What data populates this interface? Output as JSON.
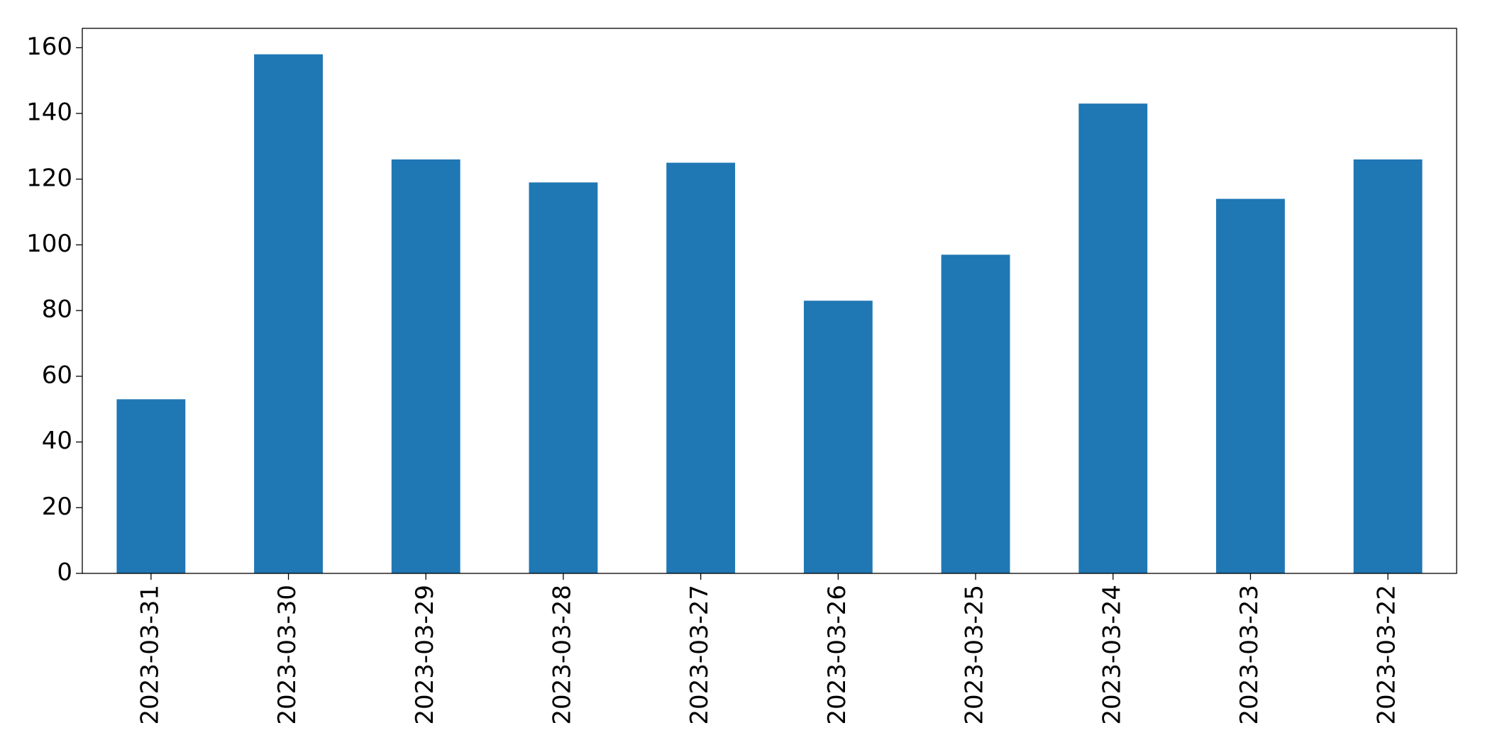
{
  "chart_data": {
    "type": "bar",
    "categories": [
      "2023-03-31",
      "2023-03-30",
      "2023-03-29",
      "2023-03-28",
      "2023-03-27",
      "2023-03-26",
      "2023-03-25",
      "2023-03-24",
      "2023-03-23",
      "2023-03-22"
    ],
    "values": [
      53,
      158,
      126,
      119,
      125,
      83,
      97,
      143,
      114,
      126
    ],
    "color": "#1f77b4",
    "ylim": [
      0,
      165.9
    ],
    "yticks": [
      0,
      20,
      40,
      60,
      80,
      100,
      120,
      140,
      160
    ],
    "grid": false
  }
}
